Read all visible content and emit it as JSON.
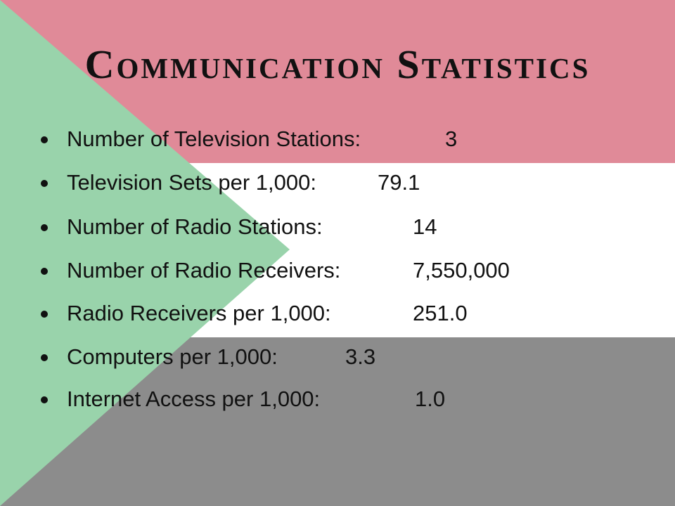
{
  "title": "Communication Statistics",
  "items": [
    {
      "label": "Number of Television Stations:",
      "value": "3"
    },
    {
      "label": "Television Sets per 1,000:",
      "value": "79.1"
    },
    {
      "label": "Number of Radio Stations:",
      "value": "14"
    },
    {
      "label": "Number of Radio Receivers:",
      "value": "7,550,000"
    },
    {
      "label": "Radio Receivers per 1,000:",
      "value": "251.0"
    },
    {
      "label": "Computers per 1,000:",
      "value": "3.3"
    },
    {
      "label": "Internet Access per 1,000:",
      "value": "1.0"
    }
  ]
}
